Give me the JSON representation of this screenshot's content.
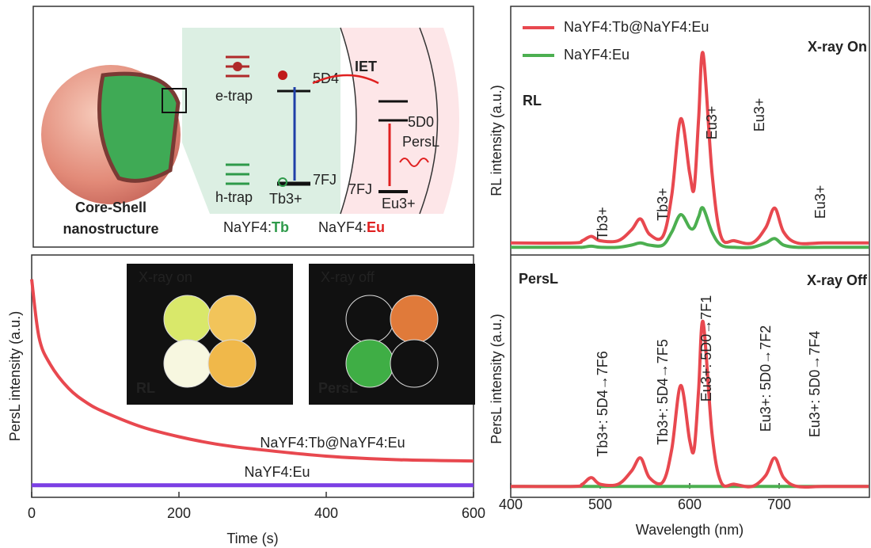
{
  "diagram": {
    "sphere_label": [
      "Core-Shell",
      "nanostructure"
    ],
    "e_trap": "e-trap",
    "h_trap": "h-trap",
    "tb_level_top": "5D4",
    "tb_level_bottom": "7FJ",
    "tb_ion": "Tb3+",
    "iet": "IET",
    "eu_level_top": "5D0",
    "persl": "PersL",
    "eu_level_bottom": "7FJ",
    "eu_ion": "Eu3+",
    "core_host": "NaYF4:",
    "core_dopant": "Tb",
    "shell_host": "NaYF4:",
    "shell_dopant": "Eu"
  },
  "photos": [
    {
      "title": "X-ray on",
      "label": "RL"
    },
    {
      "title": "X-ray off",
      "label": "PersL"
    }
  ],
  "chart_data": [
    {
      "type": "line",
      "xlabel": "Time (s)",
      "ylabel": "PersL intensity (a.u.)",
      "x": [
        0,
        10,
        25,
        50,
        75,
        100,
        150,
        200,
        250,
        300,
        400,
        500,
        600
      ],
      "xlim": [
        0,
        600
      ],
      "xticks": [
        0,
        200,
        400,
        600
      ],
      "ylim": [
        0,
        1
      ],
      "series": [
        {
          "name": "NaYF4:Tb@NaYF4:Eu",
          "color": "#e8484f",
          "values": [
            0.9,
            0.66,
            0.55,
            0.45,
            0.39,
            0.35,
            0.29,
            0.25,
            0.22,
            0.2,
            0.17,
            0.155,
            0.15
          ]
        },
        {
          "name": "NaYF4:Eu",
          "color": "#7b3fe4",
          "values": [
            0.05,
            0.05,
            0.05,
            0.05,
            0.05,
            0.05,
            0.05,
            0.05,
            0.05,
            0.05,
            0.05,
            0.05,
            0.05
          ]
        }
      ]
    },
    {
      "type": "line",
      "title": "RL",
      "subtitle": "X-ray On",
      "ylabel": "RL intensity (a.u.)",
      "x": [
        400,
        470,
        480,
        490,
        500,
        520,
        535,
        545,
        555,
        570,
        580,
        590,
        600,
        605,
        610,
        615,
        625,
        635,
        650,
        670,
        685,
        695,
        705,
        720,
        750,
        800
      ],
      "xlim": [
        400,
        800
      ],
      "ylim": [
        0,
        1
      ],
      "series": [
        {
          "name": "NaYF4:Tb@NaYF4:Eu",
          "color": "#e8484f",
          "values": [
            0.03,
            0.03,
            0.04,
            0.06,
            0.04,
            0.04,
            0.09,
            0.14,
            0.07,
            0.06,
            0.25,
            0.6,
            0.35,
            0.28,
            0.6,
            0.9,
            0.35,
            0.06,
            0.04,
            0.03,
            0.1,
            0.19,
            0.08,
            0.03,
            0.03,
            0.03
          ]
        },
        {
          "name": "NaYF4:Eu",
          "color": "#4caf50",
          "values": [
            0.01,
            0.01,
            0.01,
            0.015,
            0.01,
            0.01,
            0.02,
            0.03,
            0.02,
            0.02,
            0.08,
            0.16,
            0.1,
            0.1,
            0.15,
            0.19,
            0.08,
            0.02,
            0.01,
            0.01,
            0.03,
            0.05,
            0.02,
            0.01,
            0.01,
            0.01
          ]
        }
      ],
      "annotations": [
        {
          "text": "Tb3+",
          "color": "#222"
        },
        {
          "text": "Tb3+",
          "color": "#222"
        },
        {
          "text": "Eu3+",
          "color": "#222"
        },
        {
          "text": "Eu3+",
          "color": "#222"
        },
        {
          "text": "Eu3+",
          "color": "#222"
        }
      ]
    },
    {
      "type": "line",
      "title": "PersL",
      "subtitle": "X-ray Off",
      "ylabel": "PersL intensity (a.u.)",
      "xlabel": "Wavelength (nm)",
      "x": [
        400,
        470,
        480,
        490,
        500,
        520,
        535,
        545,
        555,
        570,
        580,
        590,
        600,
        605,
        610,
        615,
        625,
        635,
        650,
        670,
        685,
        695,
        705,
        720,
        750,
        800
      ],
      "xlim": [
        400,
        800
      ],
      "xticks": [
        400,
        500,
        600,
        700
      ],
      "ylim": [
        0,
        1
      ],
      "series": [
        {
          "name": "NaYF4:Tb@NaYF4:Eu",
          "color": "#e8484f",
          "values": [
            0.01,
            0.01,
            0.02,
            0.05,
            0.02,
            0.02,
            0.08,
            0.14,
            0.05,
            0.03,
            0.18,
            0.47,
            0.22,
            0.18,
            0.45,
            0.76,
            0.25,
            0.03,
            0.02,
            0.01,
            0.06,
            0.14,
            0.05,
            0.01,
            0.01,
            0.01
          ]
        },
        {
          "name": "NaYF4:Eu",
          "color": "#4caf50",
          "values": [
            0.01,
            0.01,
            0.01,
            0.01,
            0.01,
            0.01,
            0.01,
            0.01,
            0.01,
            0.01,
            0.01,
            0.01,
            0.01,
            0.01,
            0.01,
            0.01,
            0.01,
            0.01,
            0.01,
            0.01,
            0.01,
            0.01,
            0.01,
            0.01,
            0.01,
            0.01
          ]
        }
      ],
      "annotations": [
        {
          "text": "Tb3+: 5D4→7F6",
          "color": "#222"
        },
        {
          "text": "Tb3+: 5D4→7F5",
          "color": "#222"
        },
        {
          "text": "Eu3+: 5D0→7F1",
          "color": "#d9622b"
        },
        {
          "text": "Eu3+: 5D0→7F2",
          "color": "#d9622b"
        },
        {
          "text": "Eu3+: 5D0→7F4",
          "color": "#d9622b"
        }
      ]
    }
  ]
}
